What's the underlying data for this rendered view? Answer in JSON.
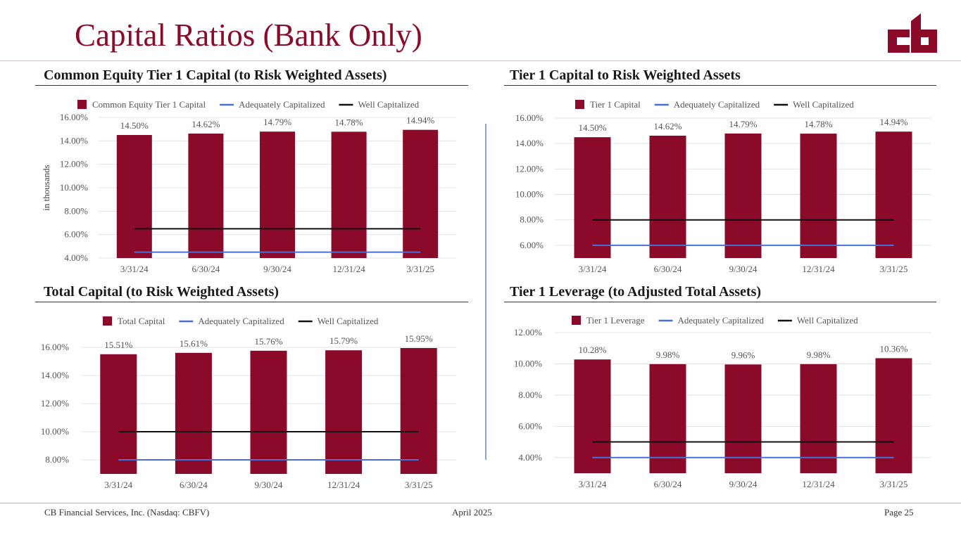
{
  "page": {
    "title": "Capital Ratios (Bank Only)",
    "accent_color": "#8b0a2a",
    "logo_icon": "cb-logo-icon"
  },
  "footer": {
    "company": "CB Financial Services, Inc. (Nasdaq: CBFV)",
    "date": "April 2025",
    "page": "Page 25"
  },
  "chart_data": [
    {
      "type": "bar",
      "title": "Common Equity Tier 1 Capital (to Risk Weighted Assets)",
      "categories": [
        "3/31/24",
        "6/30/24",
        "9/30/24",
        "12/31/24",
        "3/31/25"
      ],
      "ylabel": "in thousands",
      "ylim": [
        4,
        16
      ],
      "yticks": [
        "4.00%",
        "6.00%",
        "8.00%",
        "10.00%",
        "12.00%",
        "14.00%",
        "16.00%"
      ],
      "grid": true,
      "legend": "top",
      "series": [
        {
          "name": "Common Equity Tier 1 Capital",
          "kind": "bar",
          "color": "#8b0a2a",
          "values": [
            14.5,
            14.62,
            14.79,
            14.78,
            14.94
          ],
          "labels": [
            "14.50%",
            "14.62%",
            "14.79%",
            "14.78%",
            "14.94%"
          ]
        },
        {
          "name": "Adequately Capitalized",
          "kind": "line",
          "color": "#4a6fd8",
          "values": [
            4.5,
            4.5,
            4.5,
            4.5,
            4.5
          ]
        },
        {
          "name": "Well Capitalized",
          "kind": "line",
          "color": "#111111",
          "values": [
            6.5,
            6.5,
            6.5,
            6.5,
            6.5
          ]
        }
      ]
    },
    {
      "type": "bar",
      "title": "Tier 1 Capital to Risk Weighted Assets",
      "categories": [
        "3/31/24",
        "6/30/24",
        "9/30/24",
        "12/31/24",
        "3/31/25"
      ],
      "ylabel": "",
      "ylim": [
        5,
        16
      ],
      "yticks": [
        "6.00%",
        "8.00%",
        "10.00%",
        "12.00%",
        "14.00%",
        "16.00%"
      ],
      "grid": true,
      "legend": "top",
      "series": [
        {
          "name": "Tier 1 Capital",
          "kind": "bar",
          "color": "#8b0a2a",
          "values": [
            14.5,
            14.62,
            14.79,
            14.78,
            14.94
          ],
          "labels": [
            "14.50%",
            "14.62%",
            "14.79%",
            "14.78%",
            "14.94%"
          ]
        },
        {
          "name": "Adequately Capitalized",
          "kind": "line",
          "color": "#4a6fd8",
          "values": [
            6,
            6,
            6,
            6,
            6
          ]
        },
        {
          "name": "Well Capitalized",
          "kind": "line",
          "color": "#111111",
          "values": [
            8,
            8,
            8,
            8,
            8
          ]
        }
      ]
    },
    {
      "type": "bar",
      "title": "Total Capital (to Risk Weighted Assets)",
      "categories": [
        "3/31/24",
        "6/30/24",
        "9/30/24",
        "12/31/24",
        "3/31/25"
      ],
      "ylabel": "",
      "ylim": [
        7,
        16
      ],
      "yticks": [
        "8.00%",
        "10.00%",
        "12.00%",
        "14.00%",
        "16.00%"
      ],
      "grid": true,
      "legend": "top",
      "series": [
        {
          "name": "Total Capital",
          "kind": "bar",
          "color": "#8b0a2a",
          "values": [
            15.51,
            15.61,
            15.76,
            15.79,
            15.95
          ],
          "labels": [
            "15.51%",
            "15.61%",
            "15.76%",
            "15.79%",
            "15.95%"
          ]
        },
        {
          "name": "Adequately Capitalized",
          "kind": "line",
          "color": "#4a6fd8",
          "values": [
            8,
            8,
            8,
            8,
            8
          ]
        },
        {
          "name": "Well Capitalized",
          "kind": "line",
          "color": "#111111",
          "values": [
            10,
            10,
            10,
            10,
            10
          ]
        }
      ]
    },
    {
      "type": "bar",
      "title": "Tier 1 Leverage (to Adjusted Total Assets)",
      "categories": [
        "3/31/24",
        "6/30/24",
        "9/30/24",
        "12/31/24",
        "3/31/25"
      ],
      "ylabel": "",
      "ylim": [
        3,
        12
      ],
      "yticks": [
        "4.00%",
        "6.00%",
        "8.00%",
        "10.00%",
        "12.00%"
      ],
      "grid": true,
      "legend": "top",
      "series": [
        {
          "name": "Tier 1 Leverage",
          "kind": "bar",
          "color": "#8b0a2a",
          "values": [
            10.28,
            9.98,
            9.96,
            9.98,
            10.36
          ],
          "labels": [
            "10.28%",
            "9.98%",
            "9.96%",
            "9.98%",
            "10.36%"
          ]
        },
        {
          "name": "Adequately Capitalized",
          "kind": "line",
          "color": "#4a6fd8",
          "values": [
            4,
            4,
            4,
            4,
            4
          ]
        },
        {
          "name": "Well Capitalized",
          "kind": "line",
          "color": "#111111",
          "values": [
            5,
            5,
            5,
            5,
            5
          ]
        }
      ]
    }
  ]
}
